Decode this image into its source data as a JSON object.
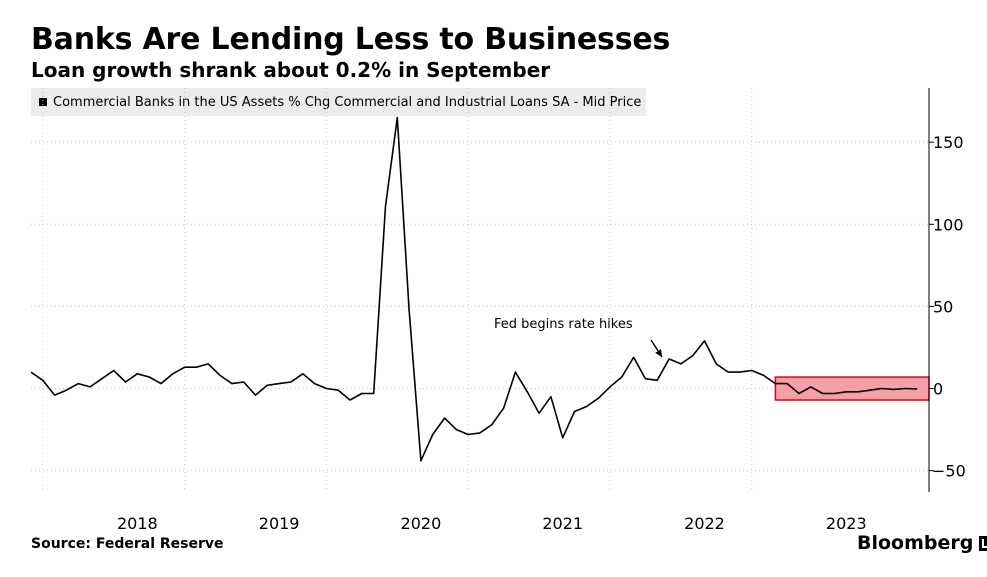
{
  "header": {
    "title": "Banks Are Lending Less to Businesses",
    "subtitle": "Loan growth shrank about 0.2% in September"
  },
  "footer": {
    "source": "Source: Federal Reserve",
    "brand": "Bloomberg"
  },
  "colors": {
    "line": "#000000",
    "highlight_fill": "#f4a0a8",
    "highlight_stroke": "#e0001a",
    "grid": "#c8c8c8",
    "legend_bg": "#ececec"
  },
  "chart_data": {
    "type": "line",
    "title": "Banks Are Lending Less to Businesses",
    "subtitle": "Loan growth shrank about 0.2% in September",
    "xlabel": "",
    "ylabel": "",
    "x_tick_labels": [
      "2018",
      "2019",
      "2020",
      "2021",
      "2022",
      "2023"
    ],
    "y_ticks": [
      150,
      100,
      50,
      0,
      -50
    ],
    "ylim": [
      -63,
      183
    ],
    "xlim": [
      "2017-06",
      "2023-10"
    ],
    "y_axis_side": "right",
    "grid": true,
    "legend_placement": "top-left",
    "series": [
      {
        "name": "Commercial Banks in the US Assets % Chg Commercial and Industrial Loans SA - Mid Price",
        "points": [
          [
            "2017-06",
            10
          ],
          [
            "2017-07",
            5
          ],
          [
            "2017-08",
            -4
          ],
          [
            "2017-09",
            -1
          ],
          [
            "2017-10",
            3
          ],
          [
            "2017-11",
            1
          ],
          [
            "2017-12",
            6
          ],
          [
            "2018-01",
            11
          ],
          [
            "2018-02",
            4
          ],
          [
            "2018-03",
            9
          ],
          [
            "2018-04",
            7
          ],
          [
            "2018-05",
            3
          ],
          [
            "2018-06",
            9
          ],
          [
            "2018-07",
            13
          ],
          [
            "2018-08",
            13
          ],
          [
            "2018-09",
            15
          ],
          [
            "2018-10",
            8
          ],
          [
            "2018-11",
            3
          ],
          [
            "2018-12",
            4
          ],
          [
            "2019-01",
            -4
          ],
          [
            "2019-02",
            2
          ],
          [
            "2019-03",
            3
          ],
          [
            "2019-04",
            4
          ],
          [
            "2019-05",
            9
          ],
          [
            "2019-06",
            3
          ],
          [
            "2019-07",
            0
          ],
          [
            "2019-08",
            -1
          ],
          [
            "2019-09",
            -7
          ],
          [
            "2019-10",
            -3
          ],
          [
            "2019-11",
            -3
          ],
          [
            "2019-12",
            111
          ],
          [
            "2020-01",
            165
          ],
          [
            "2020-02",
            48
          ],
          [
            "2020-03",
            -44
          ],
          [
            "2020-04",
            -28
          ],
          [
            "2020-05",
            -18
          ],
          [
            "2020-06",
            -25
          ],
          [
            "2020-07",
            -28
          ],
          [
            "2020-08",
            -27
          ],
          [
            "2020-09",
            -22
          ],
          [
            "2020-10",
            -12
          ],
          [
            "2020-11",
            10
          ],
          [
            "2020-12",
            -2
          ],
          [
            "2021-01",
            -15
          ],
          [
            "2021-02",
            -5
          ],
          [
            "2021-03",
            -30
          ],
          [
            "2021-04",
            -14
          ],
          [
            "2021-05",
            -11
          ],
          [
            "2021-06",
            -6
          ],
          [
            "2021-07",
            1
          ],
          [
            "2021-08",
            7
          ],
          [
            "2021-09",
            19
          ],
          [
            "2021-10",
            6
          ],
          [
            "2021-11",
            5
          ],
          [
            "2021-12",
            18
          ],
          [
            "2022-01",
            15
          ],
          [
            "2022-02",
            20
          ],
          [
            "2022-03",
            29
          ],
          [
            "2022-04",
            15
          ],
          [
            "2022-05",
            10
          ],
          [
            "2022-06",
            10
          ],
          [
            "2022-07",
            11
          ],
          [
            "2022-08",
            8
          ],
          [
            "2022-09",
            3
          ],
          [
            "2022-10",
            3
          ],
          [
            "2022-11",
            -3
          ],
          [
            "2022-12",
            1
          ],
          [
            "2023-01",
            -3
          ],
          [
            "2023-02",
            -3
          ],
          [
            "2023-03",
            -2
          ],
          [
            "2023-04",
            -2
          ],
          [
            "2023-05",
            -1
          ],
          [
            "2023-06",
            0
          ],
          [
            "2023-07",
            -0.5
          ],
          [
            "2023-08",
            0
          ],
          [
            "2023-09",
            -0.2
          ]
        ]
      }
    ],
    "annotations": [
      {
        "text": "Fed begins rate hikes",
        "target": [
          "2021-12",
          18
        ]
      }
    ],
    "highlight": {
      "x_start": "2022-09",
      "x_end": "2023-10",
      "y_min": -7,
      "y_max": 7
    }
  }
}
